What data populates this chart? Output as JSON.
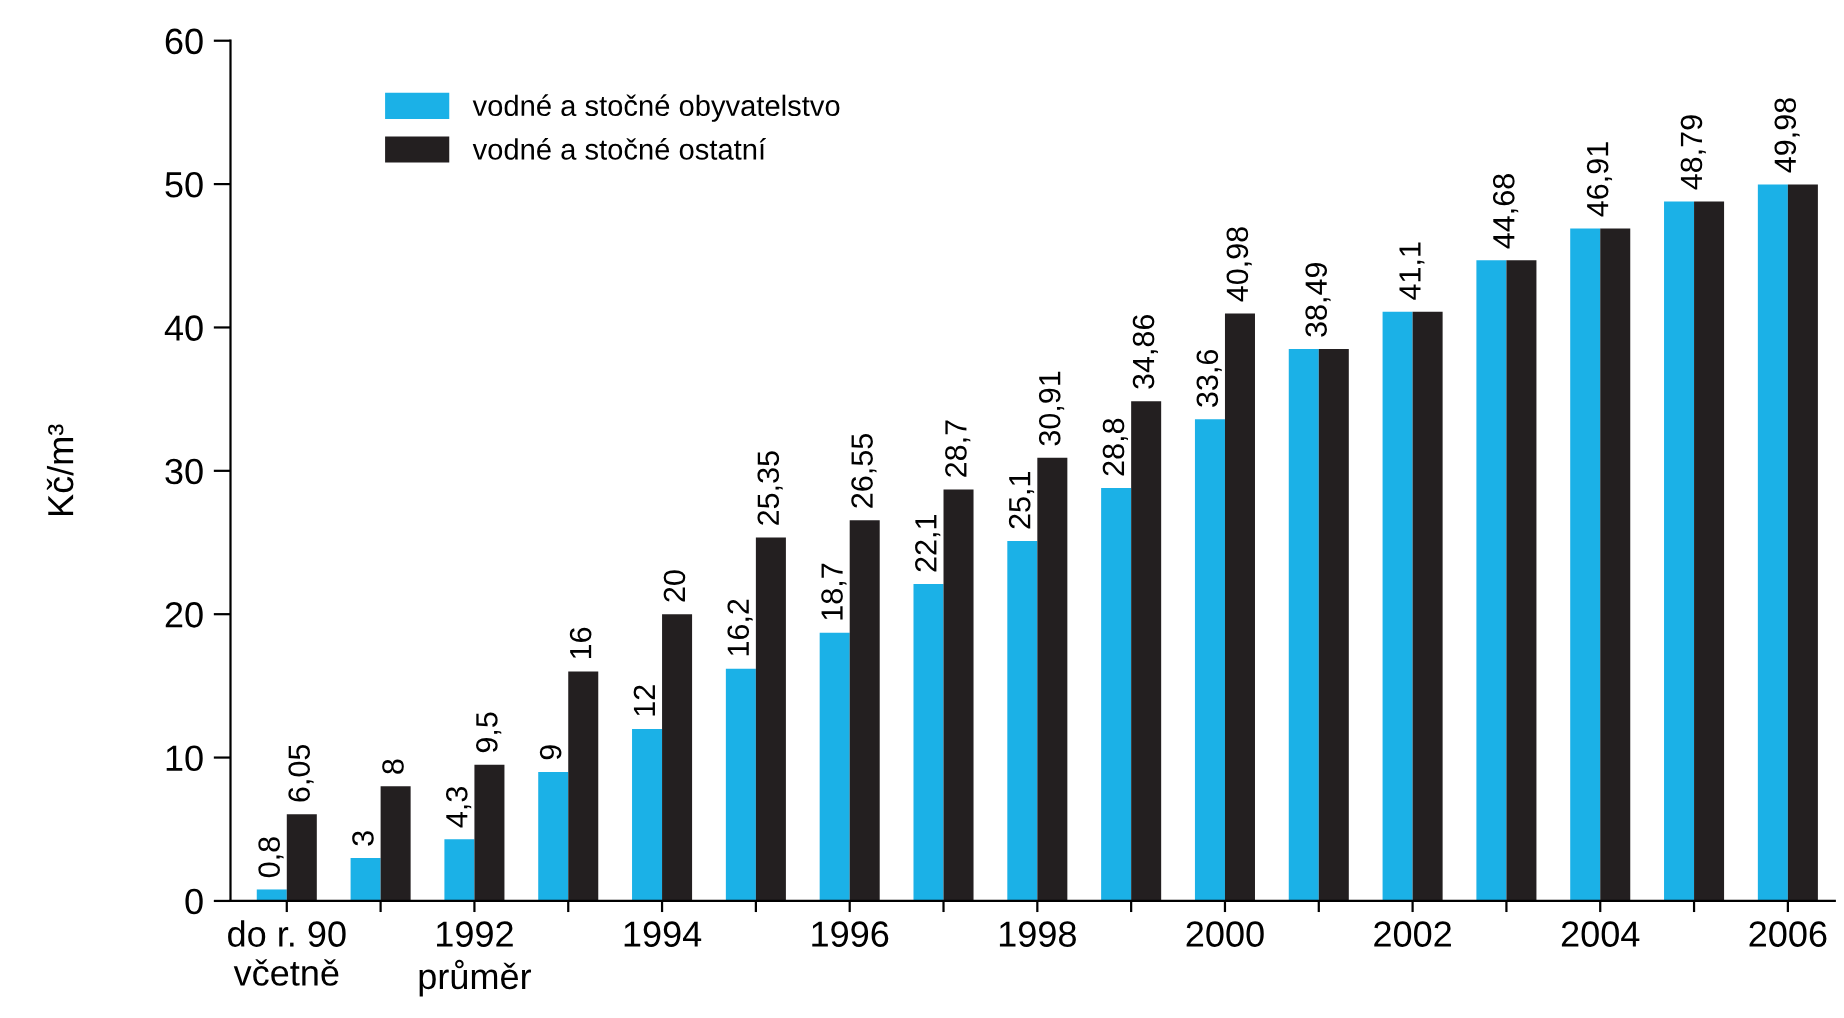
{
  "chart_data": {
    "type": "bar",
    "ylabel": "Kč/m³",
    "categories": [
      "do r. 90\nvčetně",
      null,
      "1992\nprůměr",
      null,
      "1994",
      null,
      "1996",
      null,
      "1998",
      null,
      "2000",
      null,
      "2002",
      null,
      "2004",
      null,
      "2006"
    ],
    "series": [
      {
        "name": "vodné a stočné obyvatelstvo",
        "color": "#1bb1e7",
        "values": [
          0.8,
          3,
          4.3,
          9,
          12,
          16.2,
          18.7,
          22.1,
          25.1,
          28.8,
          33.6,
          38.49,
          41.1,
          44.68,
          46.91,
          48.79,
          49.98
        ],
        "value_labels": [
          "0,8",
          "3",
          "4,3",
          "9",
          "12",
          "16,2",
          "18,7",
          "22,1",
          "25,1",
          "28,8",
          "33,6",
          null,
          null,
          null,
          null,
          null,
          null
        ]
      },
      {
        "name": "vodné a stočné ostatní",
        "color": "#231f20",
        "values": [
          6.05,
          8,
          9.5,
          16,
          20,
          25.35,
          26.55,
          28.7,
          30.91,
          34.86,
          40.98,
          38.49,
          41.1,
          44.68,
          46.91,
          48.79,
          49.98
        ],
        "value_labels": [
          "6,05",
          "8",
          "9,5",
          "16",
          "20",
          "25,35",
          "26,55",
          "28,7",
          "30,91",
          "34,86",
          "40,98",
          "38,49",
          "41,1",
          "44,68",
          "46,91",
          "48,79",
          "49,98"
        ]
      }
    ],
    "ylim": [
      0,
      60
    ],
    "yticks": [
      0,
      10,
      20,
      30,
      40,
      50,
      60
    ],
    "grid": false,
    "legend": "top left"
  }
}
